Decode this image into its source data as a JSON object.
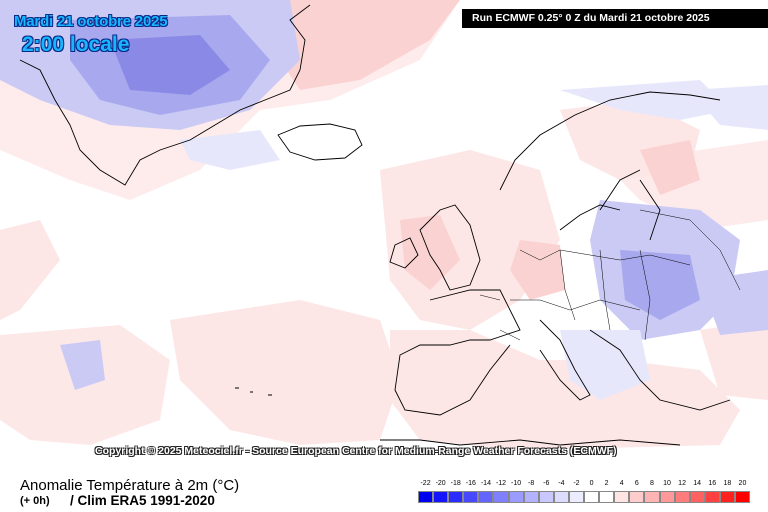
{
  "header": {
    "date_title": "Mardi 21 octobre 2025",
    "time_title": "2:00 locale",
    "run_banner": "Run ECMWF 0.25° 0 Z du Mardi 21 octobre 2025"
  },
  "copyright": "Copyright © 2025 Meteociel.fr - Source European Centre for Medium-Range Weather Forecasts (ECMWF)",
  "footer": {
    "parameter": "Anomalie Température à 2m (°C)",
    "step": "(+ 0h)",
    "climatology": "/ Clim ERA5 1991-2020"
  },
  "legend": {
    "labels": [
      "-22",
      "-20",
      "-18",
      "-16",
      "-14",
      "-12",
      "-10",
      "-8",
      "-6",
      "-4",
      "-2",
      "0",
      "2",
      "4",
      "6",
      "8",
      "10",
      "12",
      "14",
      "16",
      "18",
      "20"
    ],
    "colors": [
      "#0000f0",
      "#1414ff",
      "#2c2cff",
      "#4848ff",
      "#6464ff",
      "#8080ff",
      "#9a9aff",
      "#b2b2ff",
      "#c8c8ff",
      "#dcdcff",
      "#ececff",
      "#ffffff",
      "#ffffff",
      "#ffe4e4",
      "#ffcccc",
      "#ffb4b4",
      "#ff9898",
      "#ff7c7c",
      "#ff6060",
      "#ff4040",
      "#ff2020",
      "#ff0000"
    ]
  },
  "map": {
    "colors": {
      "background": "#ffffff",
      "slight_warm": "#fde6e6",
      "warm": "#fbd2d2",
      "warmer": "#f7bcbc",
      "slight_cold": "#e7e7fb",
      "cold": "#cacaf4",
      "colder": "#a8a8ee",
      "coldest": "#8a8ae6",
      "coastline": "#000000"
    }
  }
}
